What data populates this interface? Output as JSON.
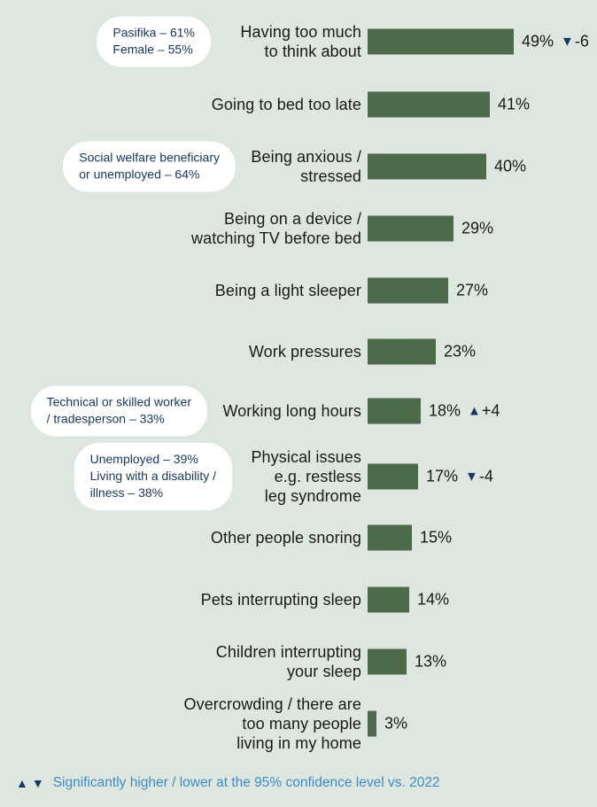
{
  "colors": {
    "background": "#dee7df",
    "bar": "#4d6a4b",
    "navy": "#17375e",
    "footer_blue": "#3e8cc7",
    "bubble_background": "#ffffff",
    "label_text": "#191919"
  },
  "chart_data": {
    "type": "bar",
    "orientation": "horizontal",
    "value_axis_range": [
      0,
      50
    ],
    "items": [
      {
        "category": "Having too much to think about",
        "label_lines": [
          "Having too much",
          "to think about"
        ],
        "value": 49,
        "value_label": "49%",
        "change": {
          "direction": "down",
          "symbol": "▼",
          "label": "-6"
        },
        "callout": {
          "lines": [
            "Pasifika – 61%",
            "Female – 55%"
          ]
        }
      },
      {
        "category": "Going to bed too late",
        "label_lines": [
          "Going to bed too late"
        ],
        "value": 41,
        "value_label": "41%"
      },
      {
        "category": "Being anxious / stressed",
        "label_lines": [
          "Being anxious /",
          "stressed"
        ],
        "value": 40,
        "value_label": "40%",
        "callout": {
          "lines": [
            "Social welfare beneficiary",
            "or unemployed – 64%"
          ]
        }
      },
      {
        "category": "Being on a device / watching TV before bed",
        "label_lines": [
          "Being on a device /",
          "watching TV before bed"
        ],
        "value": 29,
        "value_label": "29%"
      },
      {
        "category": "Being a light sleeper",
        "label_lines": [
          "Being a light sleeper"
        ],
        "value": 27,
        "value_label": "27%"
      },
      {
        "category": "Work pressures",
        "label_lines": [
          "Work pressures"
        ],
        "value": 23,
        "value_label": "23%"
      },
      {
        "category": "Working long hours",
        "label_lines": [
          "Working long hours"
        ],
        "value": 18,
        "value_label": "18%",
        "change": {
          "direction": "up",
          "symbol": "▲",
          "label": "+4"
        },
        "callout": {
          "lines": [
            "Technical or skilled worker",
            "/ tradesperson – 33%"
          ]
        }
      },
      {
        "category": "Physical issues e.g. restless leg syndrome",
        "label_lines": [
          "Physical issues",
          "e.g. restless",
          "leg syndrome"
        ],
        "value": 17,
        "value_label": "17%",
        "change": {
          "direction": "down",
          "symbol": "▼",
          "label": "-4"
        },
        "callout": {
          "lines": [
            "Unemployed – 39%",
            "Living with a disability /",
            "illness – 38%"
          ]
        }
      },
      {
        "category": "Other people snoring",
        "label_lines": [
          "Other people snoring"
        ],
        "value": 15,
        "value_label": "15%"
      },
      {
        "category": "Pets interrupting sleep",
        "label_lines": [
          "Pets interrupting sleep"
        ],
        "value": 14,
        "value_label": "14%"
      },
      {
        "category": "Children interrupting your sleep",
        "label_lines": [
          "Children interrupting",
          "your sleep"
        ],
        "value": 13,
        "value_label": "13%"
      },
      {
        "category": "Overcrowding / there are too many people living in my home",
        "label_lines": [
          "Overcrowding / there are",
          "too many people",
          "living in my home"
        ],
        "value": 3,
        "value_label": "3%"
      }
    ]
  },
  "footer": {
    "up_symbol": "▲",
    "down_symbol": "▼",
    "text": "Significantly higher / lower at the 95% confidence level vs. 2022"
  }
}
